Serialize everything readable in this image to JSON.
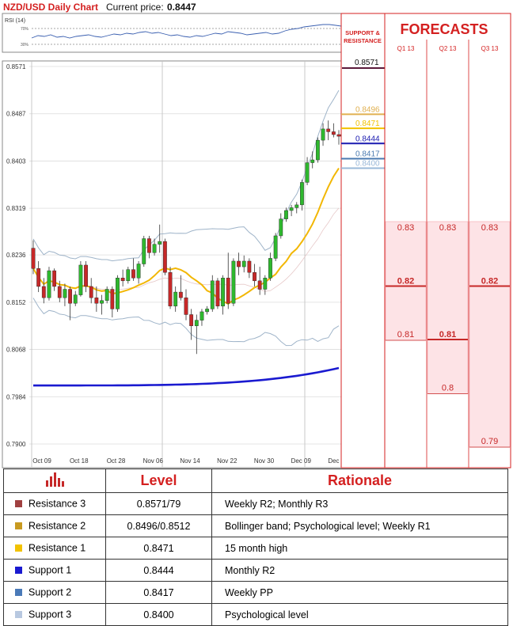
{
  "header": {
    "title": "NZD/USD Daily Chart",
    "price_label": "Current price:",
    "price_value": "0.8447"
  },
  "rsi": {
    "label": "RSI (14)",
    "ticks": [
      "70%",
      "30%"
    ]
  },
  "chart_data": [
    {
      "type": "candlestick",
      "title": "NZD/USD Daily Chart",
      "y_ticks": [
        0.8571,
        0.8487,
        0.8403,
        0.8319,
        0.8236,
        0.8152,
        0.8068,
        0.7984,
        0.79
      ],
      "ylim": [
        0.79,
        0.8571
      ],
      "x_ticks": [
        "Oct 09",
        "Oct 18",
        "Oct 28",
        "Nov 06",
        "Nov 14",
        "Nov 22",
        "Nov 30",
        "Dec 09",
        "Dec 17"
      ],
      "candles": [
        [
          0.8248,
          0.8262,
          0.8202,
          0.8212
        ],
        [
          0.8212,
          0.8225,
          0.817,
          0.818
        ],
        [
          0.818,
          0.8195,
          0.815,
          0.816
        ],
        [
          0.816,
          0.8215,
          0.8155,
          0.8208
        ],
        [
          0.8208,
          0.8212,
          0.8172,
          0.818
        ],
        [
          0.818,
          0.819,
          0.8152,
          0.816
        ],
        [
          0.816,
          0.8185,
          0.8145,
          0.8175
        ],
        [
          0.8175,
          0.818,
          0.812,
          0.815
        ],
        [
          0.815,
          0.8172,
          0.8145,
          0.8165
        ],
        [
          0.8165,
          0.8225,
          0.8162,
          0.8218
        ],
        [
          0.8218,
          0.8225,
          0.817,
          0.818
        ],
        [
          0.818,
          0.8195,
          0.815,
          0.816
        ],
        [
          0.816,
          0.818,
          0.8135,
          0.815
        ],
        [
          0.815,
          0.8165,
          0.813,
          0.8155
        ],
        [
          0.8155,
          0.818,
          0.815,
          0.8175
        ],
        [
          0.8175,
          0.818,
          0.8125,
          0.814
        ],
        [
          0.814,
          0.82,
          0.8135,
          0.8195
        ],
        [
          0.8195,
          0.821,
          0.818,
          0.819
        ],
        [
          0.819,
          0.8215,
          0.8185,
          0.821
        ],
        [
          0.821,
          0.823,
          0.819,
          0.8195
        ],
        [
          0.8195,
          0.8225,
          0.8185,
          0.822
        ],
        [
          0.822,
          0.827,
          0.8215,
          0.8265
        ],
        [
          0.8265,
          0.827,
          0.823,
          0.824
        ],
        [
          0.824,
          0.8265,
          0.8235,
          0.8255
        ],
        [
          0.8255,
          0.829,
          0.824,
          0.826
        ],
        [
          0.826,
          0.8265,
          0.82,
          0.8205
        ],
        [
          0.8205,
          0.8215,
          0.814,
          0.8145
        ],
        [
          0.8145,
          0.818,
          0.8135,
          0.817
        ],
        [
          0.817,
          0.82,
          0.8155,
          0.816
        ],
        [
          0.816,
          0.8175,
          0.812,
          0.813
        ],
        [
          0.813,
          0.814,
          0.8085,
          0.811
        ],
        [
          0.811,
          0.813,
          0.806,
          0.812
        ],
        [
          0.812,
          0.814,
          0.811,
          0.8135
        ],
        [
          0.8135,
          0.8145,
          0.813,
          0.814
        ],
        [
          0.814,
          0.82,
          0.8135,
          0.819
        ],
        [
          0.819,
          0.8195,
          0.814,
          0.8145
        ],
        [
          0.8145,
          0.82,
          0.813,
          0.8195
        ],
        [
          0.8195,
          0.824,
          0.814,
          0.815
        ],
        [
          0.815,
          0.823,
          0.8145,
          0.8225
        ],
        [
          0.8225,
          0.824,
          0.82,
          0.8215
        ],
        [
          0.8215,
          0.8235,
          0.8205,
          0.8225
        ],
        [
          0.8225,
          0.823,
          0.8195,
          0.8205
        ],
        [
          0.8205,
          0.822,
          0.818,
          0.819
        ],
        [
          0.819,
          0.8215,
          0.8165,
          0.8175
        ],
        [
          0.8175,
          0.82,
          0.8165,
          0.8195
        ],
        [
          0.8195,
          0.824,
          0.819,
          0.823
        ],
        [
          0.823,
          0.8275,
          0.8225,
          0.827
        ],
        [
          0.827,
          0.831,
          0.8265,
          0.83
        ],
        [
          0.83,
          0.832,
          0.8295,
          0.8315
        ],
        [
          0.8315,
          0.8325,
          0.8305,
          0.832
        ],
        [
          0.832,
          0.833,
          0.831,
          0.8325
        ],
        [
          0.8325,
          0.837,
          0.8315,
          0.8365
        ],
        [
          0.8365,
          0.841,
          0.836,
          0.84
        ],
        [
          0.84,
          0.842,
          0.839,
          0.8405
        ],
        [
          0.8405,
          0.8445,
          0.84,
          0.844
        ],
        [
          0.844,
          0.847,
          0.843,
          0.846
        ],
        [
          0.846,
          0.8475,
          0.844,
          0.8455
        ],
        [
          0.8455,
          0.847,
          0.8445,
          0.845
        ],
        [
          0.845,
          0.8458,
          0.8432,
          0.8447
        ]
      ],
      "indicator_colors": {
        "bollinger": "#9fb4c9",
        "sma": "#f2b705",
        "long_ma": "#1a1ad0",
        "bull": "#2eb82e",
        "bear": "#c62828"
      }
    },
    {
      "type": "levels",
      "series": [
        {
          "name": "0.8571",
          "value": 0.8571,
          "color": "#5a1a3a"
        },
        {
          "name": "0.8496",
          "value": 0.8496,
          "color": "#e0b050"
        },
        {
          "name": "0.8471",
          "value": 0.8471,
          "color": "#f2c200"
        },
        {
          "name": "0.8444",
          "value": 0.8444,
          "color": "#1a1ab0"
        },
        {
          "name": "0.8417",
          "value": 0.8417,
          "color": "#4a7ab0"
        },
        {
          "name": "0.8400",
          "value": 0.84,
          "color": "#9ab8d8"
        }
      ]
    },
    {
      "type": "forecast-table",
      "title": "FORECASTS",
      "support_label_1": "SUPPORT &",
      "support_label_2": "RESISTANCE",
      "quarters": [
        "Q1 13",
        "Q2 13",
        "Q3 13"
      ],
      "forecasts": [
        {
          "low": 0.81,
          "mid": 0.82,
          "high": 0.83,
          "labels": [
            "0.83",
            "0.82",
            "0.81"
          ]
        },
        {
          "low": 0.8,
          "mid": 0.81,
          "high": 0.83,
          "labels": [
            "0.83",
            "0.81",
            "0.8"
          ]
        },
        {
          "low": 0.79,
          "mid": 0.82,
          "high": 0.83,
          "labels": [
            "0.83",
            "0.82",
            "0.79"
          ]
        }
      ]
    }
  ],
  "table": {
    "headers": [
      "Level",
      "Rationale"
    ],
    "rows": [
      {
        "name": "Resistance 3",
        "level": "0.8571/79",
        "rationale": "Weekly R2; Monthly R3",
        "color": "#a04040"
      },
      {
        "name": "Resistance 2",
        "level": "0.8496/0.8512",
        "rationale": "Bollinger band; Psychological level; Weekly R1",
        "color": "#c89a20"
      },
      {
        "name": "Resistance 1",
        "level": "0.8471",
        "rationale": "15 month high",
        "color": "#f2c200"
      },
      {
        "name": "Support 1",
        "level": "0.8444",
        "rationale": "Monthly R2",
        "color": "#1a1ad0"
      },
      {
        "name": "Support 2",
        "level": "0.8417",
        "rationale": "Weekly PP",
        "color": "#4a7ab8"
      },
      {
        "name": "Support 3",
        "level": "0.8400",
        "rationale": "Psychological level",
        "color": "#b8c8e0"
      }
    ]
  }
}
